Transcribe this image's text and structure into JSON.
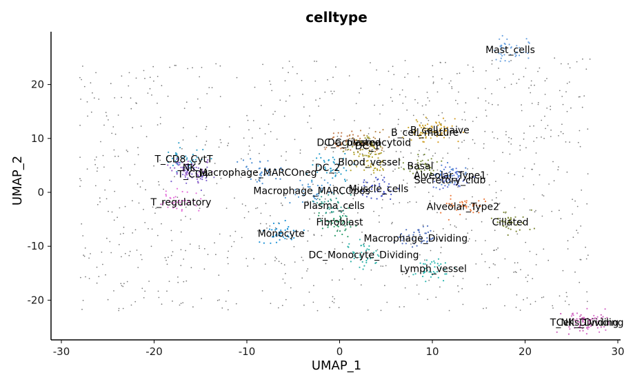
{
  "chart_data": {
    "type": "scatter",
    "title": "celltype",
    "xlabel": "UMAP_1",
    "ylabel": "UMAP_2",
    "xlim": [
      -31,
      30
    ],
    "ylim": [
      -27.5,
      30
    ],
    "x_ticks": [
      -30,
      -20,
      -10,
      0,
      10,
      20,
      30
    ],
    "y_ticks": [
      -20,
      -10,
      0,
      10,
      20
    ],
    "grid": false,
    "legend": "none",
    "clusters": [
      {
        "name": "Mast_cells",
        "x": 18.4,
        "y": 26.5,
        "color": "#6aa2e0"
      },
      {
        "name": "B_cell_naive",
        "x": 10.8,
        "y": 11.6,
        "color": "#d6a02a"
      },
      {
        "name": "B_cell_mature",
        "x": 9.2,
        "y": 11.1,
        "color": "#c9a227"
      },
      {
        "name": "DC_activated",
        "x": 1.0,
        "y": 9.3,
        "color": "#c17a4a"
      },
      {
        "name": "DC_plasmacytoid",
        "x": 3.2,
        "y": 9.3,
        "color": "#b8884a"
      },
      {
        "name": "DC_1",
        "x": 3.0,
        "y": 8.6,
        "color": "#a7a23a"
      },
      {
        "name": "DC_2",
        "x": -1.3,
        "y": 4.6,
        "color": "#1f9ac9"
      },
      {
        "name": "Blood_vessel",
        "x": 3.2,
        "y": 5.6,
        "color": "#b8a42a"
      },
      {
        "name": "Basal",
        "x": 8.7,
        "y": 4.9,
        "color": "#7a8f3c"
      },
      {
        "name": "Alveolar_Type1",
        "x": 11.9,
        "y": 3.2,
        "color": "#4b7fd1"
      },
      {
        "name": "Secretory_club",
        "x": 11.9,
        "y": 2.3,
        "color": "#5f6fd6"
      },
      {
        "name": "T_CD8_CytT",
        "x": -16.8,
        "y": 6.2,
        "color": "#2e9ec7"
      },
      {
        "name": "NK",
        "x": -16.2,
        "y": 4.6,
        "color": "#9a5fc9"
      },
      {
        "name": "T_CD4",
        "x": -15.8,
        "y": 3.4,
        "color": "#7e63cf"
      },
      {
        "name": "Macrophage_MARCOneg",
        "x": -8.8,
        "y": 3.7,
        "color": "#4a8bd0"
      },
      {
        "name": "Macrophage_MARCOpos",
        "x": -3.0,
        "y": 0.3,
        "color": "#4b95d3"
      },
      {
        "name": "Muscle_cells",
        "x": 4.2,
        "y": 0.7,
        "color": "#3f4fc6"
      },
      {
        "name": "T_regulatory",
        "x": -17.1,
        "y": -1.8,
        "color": "#e46fd9"
      },
      {
        "name": "Plasma_cells",
        "x": -0.6,
        "y": -2.4,
        "color": "#2d9c8a"
      },
      {
        "name": "Alveolar_Type2",
        "x": 13.3,
        "y": -2.6,
        "color": "#ec7a3c"
      },
      {
        "name": "Fibroblast",
        "x": 0.0,
        "y": -5.5,
        "color": "#2a9d6a"
      },
      {
        "name": "Ciliated",
        "x": 18.4,
        "y": -5.5,
        "color": "#7f8a3a"
      },
      {
        "name": "Monocyte",
        "x": -6.3,
        "y": -7.6,
        "color": "#1b91d6"
      },
      {
        "name": "Macrophage_Dividing",
        "x": 8.2,
        "y": -8.5,
        "color": "#4e6fbf"
      },
      {
        "name": "DC_Monocyte_Dividing",
        "x": 2.6,
        "y": -11.6,
        "color": "#2fb2a8"
      },
      {
        "name": "Lymph_vessel",
        "x": 10.1,
        "y": -14.1,
        "color": "#2bb7b0"
      },
      {
        "name": "T_NK_Dividing",
        "x": 26.4,
        "y": -24.1,
        "color": "#c95bb5"
      },
      {
        "name": "Cells_Dividing",
        "x": 27.0,
        "y": -24.1,
        "color": "#d468c6"
      }
    ]
  }
}
